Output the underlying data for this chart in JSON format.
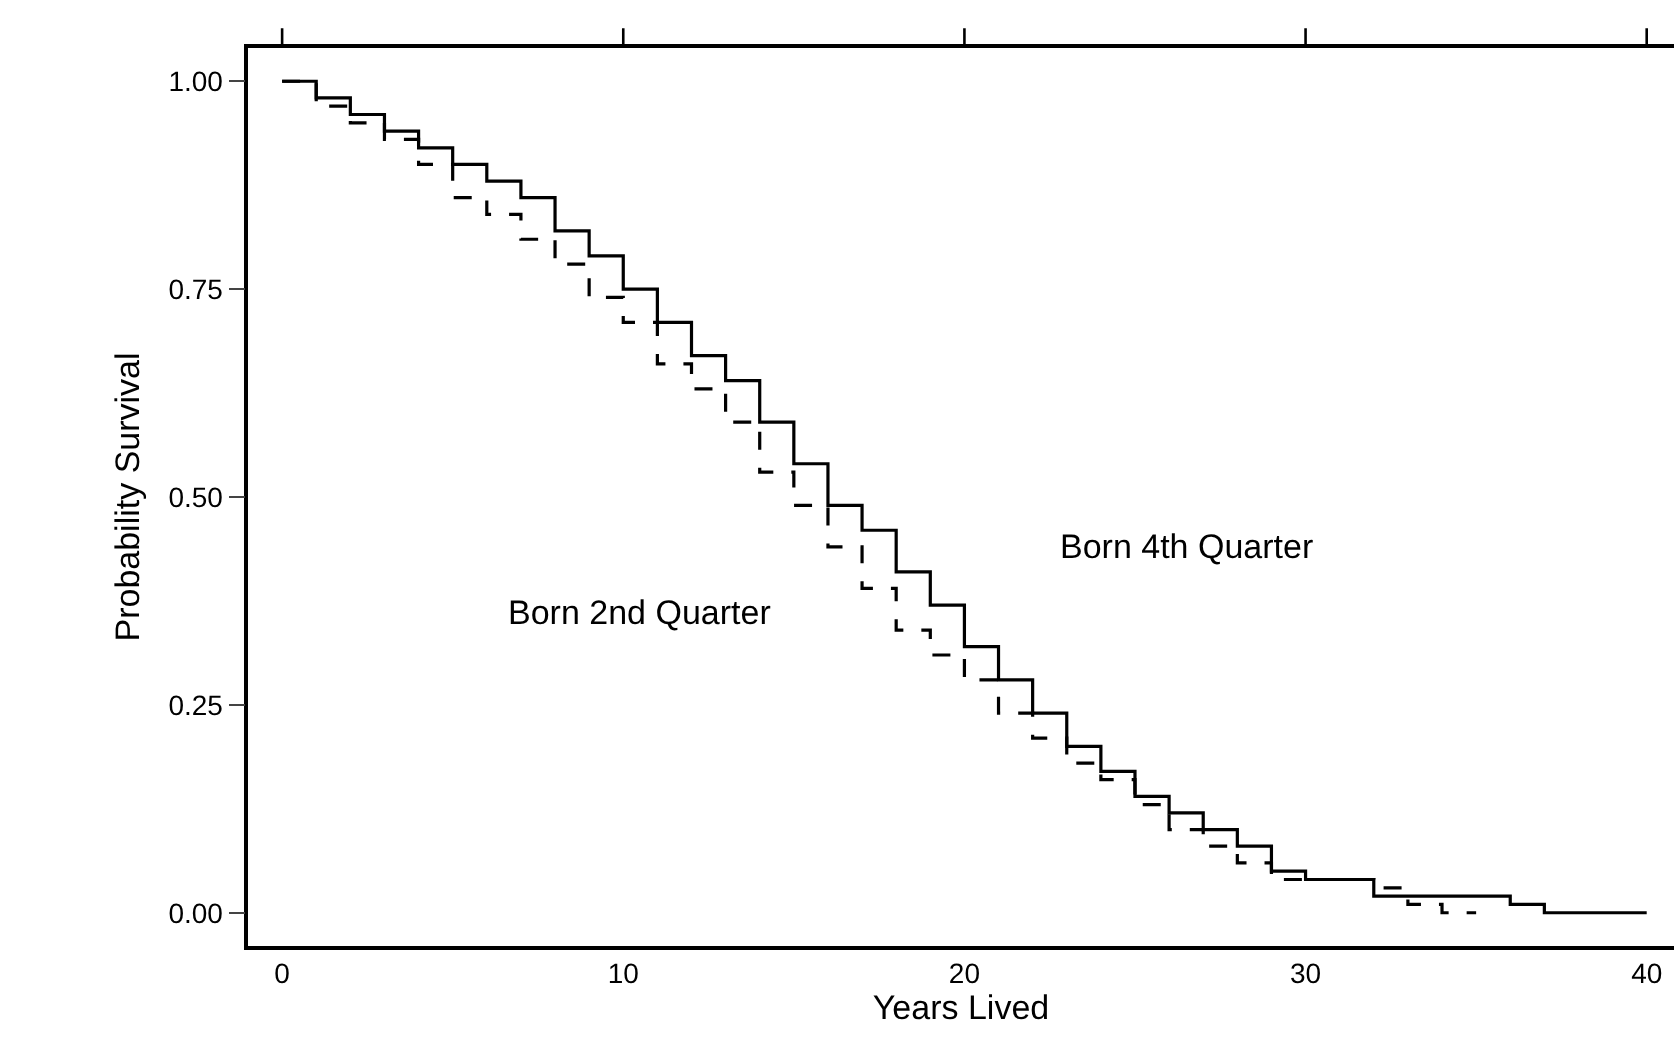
{
  "chart_data": {
    "type": "step",
    "xlabel": "Years Lived",
    "ylabel": "Probability Survival",
    "x": [
      0,
      1,
      2,
      3,
      4,
      5,
      6,
      7,
      8,
      9,
      10,
      11,
      12,
      13,
      14,
      15,
      16,
      17,
      18,
      19,
      20,
      21,
      22,
      23,
      24,
      25,
      26,
      27,
      28,
      29,
      30,
      31,
      32,
      33,
      34,
      35,
      36,
      37,
      38,
      39,
      40
    ],
    "series": [
      {
        "color": "#000000",
        "line_style": "solid",
        "values": [
          1.0,
          0.98,
          0.96,
          0.94,
          0.92,
          0.9,
          0.88,
          0.86,
          0.82,
          0.79,
          0.75,
          0.71,
          0.67,
          0.64,
          0.59,
          0.54,
          0.49,
          0.46,
          0.41,
          0.37,
          0.32,
          0.28,
          0.24,
          0.2,
          0.17,
          0.14,
          0.12,
          0.1,
          0.08,
          0.05,
          0.04,
          0.04,
          0.02,
          0.02,
          0.02,
          0.02,
          0.01,
          0.0,
          0.0,
          0.0,
          0.0
        ]
      },
      {
        "color": "#000000",
        "line_style": "dashed",
        "values": [
          1.0,
          0.97,
          0.95,
          0.93,
          0.9,
          0.86,
          0.84,
          0.81,
          0.78,
          0.74,
          0.71,
          0.66,
          0.63,
          0.59,
          0.53,
          0.49,
          0.44,
          0.39,
          0.34,
          0.31,
          0.28,
          0.24,
          0.21,
          0.18,
          0.16,
          0.13,
          0.1,
          0.08,
          0.06,
          0.04,
          0.04,
          0.04,
          0.03,
          0.01,
          0.0,
          0.0,
          null,
          null,
          null,
          null,
          null
        ]
      }
    ],
    "annotations": [
      "Born 4th Quarter",
      "Born 2nd Quarter"
    ],
    "xlim": [
      -1,
      40.8
    ],
    "xticks": [
      0,
      10,
      20,
      30,
      40
    ],
    "ylim": [
      -0.04,
      1.04
    ],
    "yticks": [
      {
        "value": 0,
        "label": "0.00"
      },
      {
        "value": 0.25,
        "label": "0.25"
      },
      {
        "value": 0.5,
        "label": "0.50"
      },
      {
        "value": 0.75,
        "label": "0.75"
      },
      {
        "value": 1,
        "label": "1.00"
      }
    ],
    "legend": false
  }
}
